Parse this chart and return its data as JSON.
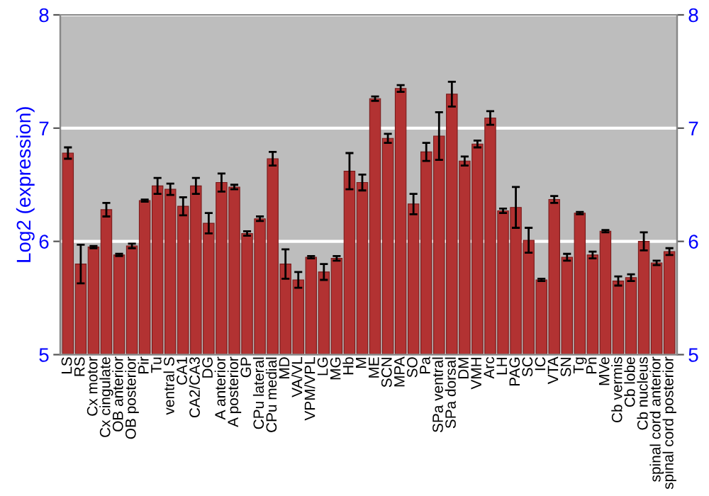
{
  "chart_data": {
    "type": "bar",
    "ylabel": "Log2 (expression)",
    "categories": [
      "LS",
      "RS",
      "Cx motor",
      "Cx cingulate",
      "OB anterior",
      "OB posterior",
      "Pir",
      "Tu",
      "ventral S",
      "CA1",
      "CA2/CA3",
      "DG",
      "A anterior",
      "A posterior",
      "GP",
      "CPu lateral",
      "CPu medial",
      "MD",
      "VA/VL",
      "VPM/VPL",
      "LG",
      "MG",
      "Hb",
      "M",
      "ME",
      "SCN",
      "MPA",
      "SO",
      "Pa",
      "SPa ventral",
      "SPa dorsal",
      "DM",
      "VMH",
      "Arc",
      "LH",
      "PAG",
      "SC",
      "IC",
      "VTA",
      "SN",
      "Tg",
      "Pn",
      "MVe",
      "Cb vermis",
      "Cb lobe",
      "Cb nucleus",
      "spinal cord anterior",
      "spinal cord posterior"
    ],
    "values": [
      6.78,
      5.8,
      5.95,
      6.28,
      5.88,
      5.96,
      6.36,
      6.49,
      6.46,
      6.31,
      6.49,
      6.16,
      6.52,
      6.48,
      6.07,
      6.2,
      6.73,
      5.8,
      5.66,
      5.86,
      5.73,
      5.85,
      6.62,
      6.52,
      7.26,
      6.91,
      7.35,
      6.33,
      6.79,
      6.93,
      7.3,
      6.71,
      6.86,
      7.09,
      6.27,
      6.3,
      6.01,
      5.66,
      6.37,
      5.86,
      6.25,
      5.88,
      6.09,
      5.65,
      5.68,
      6.0,
      5.81,
      5.91
    ],
    "errors": [
      0.05,
      0.17,
      0.01,
      0.06,
      0.01,
      0.02,
      0.01,
      0.07,
      0.05,
      0.08,
      0.07,
      0.09,
      0.08,
      0.02,
      0.02,
      0.02,
      0.06,
      0.13,
      0.07,
      0.01,
      0.07,
      0.02,
      0.16,
      0.07,
      0.02,
      0.04,
      0.03,
      0.09,
      0.08,
      0.21,
      0.11,
      0.04,
      0.03,
      0.06,
      0.02,
      0.18,
      0.11,
      0.01,
      0.03,
      0.03,
      0.01,
      0.03,
      0.01,
      0.04,
      0.03,
      0.08,
      0.02,
      0.03
    ],
    "color": "#b23232",
    "ylim": [
      5,
      8
    ],
    "yticks": [
      5,
      6,
      7,
      8
    ],
    "y2lim": [
      5,
      8
    ],
    "y2ticks": [
      5,
      6,
      7,
      8
    ],
    "grid": "y"
  }
}
